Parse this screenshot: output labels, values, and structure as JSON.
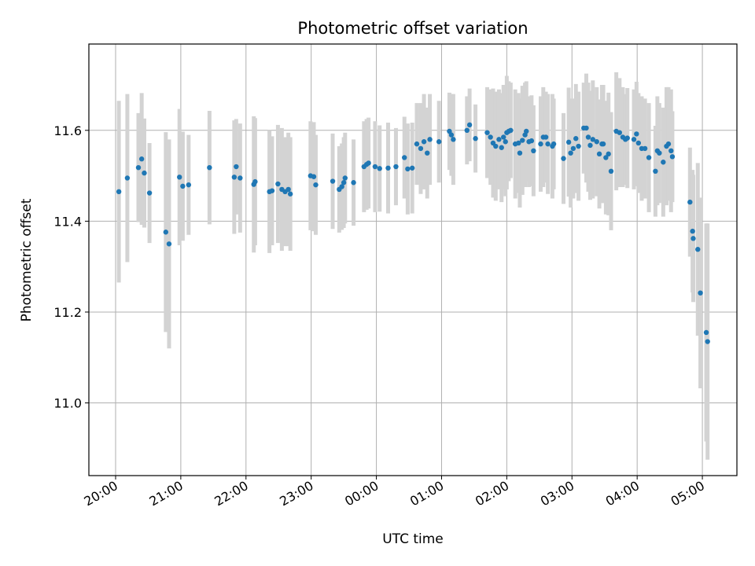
{
  "chart_data": {
    "type": "scatter",
    "title": "Photometric offset variation",
    "xlabel": "UTC time",
    "ylabel": "Photometric offset",
    "x_unit": "hours since 20:00 UTC",
    "xlim": [
      -0.41,
      9.53
    ],
    "ylim": [
      10.84,
      11.79
    ],
    "grid": true,
    "x_ticks": [
      {
        "value": 0,
        "label": "20:00"
      },
      {
        "value": 1,
        "label": "21:00"
      },
      {
        "value": 2,
        "label": "22:00"
      },
      {
        "value": 3,
        "label": "23:00"
      },
      {
        "value": 4,
        "label": "00:00"
      },
      {
        "value": 5,
        "label": "01:00"
      },
      {
        "value": 6,
        "label": "02:00"
      },
      {
        "value": 7,
        "label": "03:00"
      },
      {
        "value": 8,
        "label": "04:00"
      },
      {
        "value": 9,
        "label": "05:00"
      }
    ],
    "y_ticks": [
      {
        "value": 11.0,
        "label": "11.0"
      },
      {
        "value": 11.2,
        "label": "11.2"
      },
      {
        "value": 11.4,
        "label": "11.4"
      },
      {
        "value": 11.6,
        "label": "11.6"
      }
    ],
    "colors": {
      "points": "#1f77b4",
      "errorbars": "#d3d3d3",
      "grid": "#b0b0b0"
    },
    "series": [
      {
        "name": "offset",
        "points": [
          [
            0.05,
            11.465,
            0.2
          ],
          [
            0.18,
            11.495,
            0.185
          ],
          [
            0.35,
            11.518,
            0.12
          ],
          [
            0.4,
            11.537,
            0.145
          ],
          [
            0.44,
            11.506,
            0.12
          ],
          [
            0.52,
            11.462,
            0.11
          ],
          [
            0.77,
            11.376,
            0.22
          ],
          [
            0.82,
            11.35,
            0.23
          ],
          [
            0.98,
            11.497,
            0.15
          ],
          [
            1.03,
            11.477,
            0.12
          ],
          [
            1.12,
            11.48,
            0.11
          ],
          [
            1.44,
            11.518,
            0.125
          ],
          [
            1.82,
            11.497,
            0.125
          ],
          [
            1.85,
            11.52,
            0.105
          ],
          [
            1.91,
            11.495,
            0.12
          ],
          [
            2.12,
            11.481,
            0.15
          ],
          [
            2.14,
            11.487,
            0.14
          ],
          [
            2.36,
            11.465,
            0.135
          ],
          [
            2.4,
            11.467,
            0.12
          ],
          [
            2.49,
            11.482,
            0.13
          ],
          [
            2.55,
            11.47,
            0.135
          ],
          [
            2.6,
            11.465,
            0.12
          ],
          [
            2.65,
            11.47,
            0.125
          ],
          [
            2.68,
            11.46,
            0.125
          ],
          [
            2.99,
            11.5,
            0.12
          ],
          [
            3.04,
            11.498,
            0.12
          ],
          [
            3.07,
            11.48,
            0.11
          ],
          [
            3.33,
            11.488,
            0.105
          ],
          [
            3.43,
            11.47,
            0.095
          ],
          [
            3.47,
            11.476,
            0.095
          ],
          [
            3.5,
            11.485,
            0.1
          ],
          [
            3.52,
            11.495,
            0.1
          ],
          [
            3.65,
            11.485,
            0.095
          ],
          [
            3.81,
            11.52,
            0.1
          ],
          [
            3.85,
            11.525,
            0.1
          ],
          [
            3.88,
            11.528,
            0.1
          ],
          [
            3.98,
            11.52,
            0.1
          ],
          [
            4.05,
            11.516,
            0.095
          ],
          [
            4.18,
            11.517,
            0.1
          ],
          [
            4.3,
            11.52,
            0.085
          ],
          [
            4.43,
            11.54,
            0.09
          ],
          [
            4.48,
            11.515,
            0.1
          ],
          [
            4.55,
            11.517,
            0.1
          ],
          [
            4.62,
            11.57,
            0.09
          ],
          [
            4.68,
            11.56,
            0.1
          ],
          [
            4.73,
            11.575,
            0.105
          ],
          [
            4.78,
            11.55,
            0.1
          ],
          [
            4.82,
            11.58,
            0.1
          ],
          [
            4.96,
            11.575,
            0.09
          ],
          [
            5.12,
            11.598,
            0.085
          ],
          [
            5.15,
            11.59,
            0.09
          ],
          [
            5.18,
            11.58,
            0.1
          ],
          [
            5.39,
            11.6,
            0.075
          ],
          [
            5.43,
            11.612,
            0.08
          ],
          [
            5.52,
            11.582,
            0.075
          ],
          [
            5.7,
            11.595,
            0.1
          ],
          [
            5.75,
            11.585,
            0.105
          ],
          [
            5.79,
            11.572,
            0.12
          ],
          [
            5.83,
            11.565,
            0.12
          ],
          [
            5.88,
            11.58,
            0.11
          ],
          [
            5.92,
            11.562,
            0.12
          ],
          [
            5.95,
            11.585,
            0.115
          ],
          [
            5.98,
            11.575,
            0.12
          ],
          [
            6.0,
            11.595,
            0.125
          ],
          [
            6.03,
            11.598,
            0.11
          ],
          [
            6.06,
            11.6,
            0.105
          ],
          [
            6.13,
            11.57,
            0.12
          ],
          [
            6.18,
            11.572,
            0.11
          ],
          [
            6.2,
            11.55,
            0.12
          ],
          [
            6.24,
            11.578,
            0.12
          ],
          [
            6.28,
            11.59,
            0.115
          ],
          [
            6.3,
            11.598,
            0.11
          ],
          [
            6.34,
            11.575,
            0.1
          ],
          [
            6.38,
            11.577,
            0.1
          ],
          [
            6.41,
            11.555,
            0.1
          ],
          [
            6.52,
            11.57,
            0.105
          ],
          [
            6.56,
            11.585,
            0.11
          ],
          [
            6.6,
            11.585,
            0.1
          ],
          [
            6.63,
            11.57,
            0.11
          ],
          [
            6.7,
            11.565,
            0.115
          ],
          [
            6.72,
            11.57,
            0.1
          ],
          [
            6.87,
            11.538,
            0.1
          ],
          [
            6.95,
            11.574,
            0.12
          ],
          [
            6.98,
            11.55,
            0.12
          ],
          [
            7.02,
            11.56,
            0.11
          ],
          [
            7.06,
            11.582,
            0.12
          ],
          [
            7.1,
            11.565,
            0.12
          ],
          [
            7.18,
            11.605,
            0.1
          ],
          [
            7.22,
            11.605,
            0.12
          ],
          [
            7.25,
            11.585,
            0.12
          ],
          [
            7.28,
            11.567,
            0.12
          ],
          [
            7.32,
            11.58,
            0.13
          ],
          [
            7.38,
            11.575,
            0.12
          ],
          [
            7.42,
            11.548,
            0.12
          ],
          [
            7.46,
            11.57,
            0.13
          ],
          [
            7.48,
            11.57,
            0.13
          ],
          [
            7.52,
            11.54,
            0.125
          ],
          [
            7.56,
            11.548,
            0.135
          ],
          [
            7.6,
            11.51,
            0.13
          ],
          [
            7.68,
            11.598,
            0.13
          ],
          [
            7.73,
            11.595,
            0.12
          ],
          [
            7.78,
            11.585,
            0.11
          ],
          [
            7.82,
            11.58,
            0.1
          ],
          [
            7.85,
            11.583,
            0.11
          ],
          [
            7.95,
            11.58,
            0.11
          ],
          [
            7.99,
            11.592,
            0.115
          ],
          [
            8.02,
            11.572,
            0.11
          ],
          [
            8.07,
            11.56,
            0.115
          ],
          [
            8.12,
            11.56,
            0.11
          ],
          [
            8.18,
            11.54,
            0.12
          ],
          [
            8.28,
            11.51,
            0.1
          ],
          [
            8.31,
            11.555,
            0.12
          ],
          [
            8.34,
            11.55,
            0.11
          ],
          [
            8.4,
            11.53,
            0.12
          ],
          [
            8.45,
            11.565,
            0.13
          ],
          [
            8.48,
            11.57,
            0.125
          ],
          [
            8.52,
            11.555,
            0.135
          ],
          [
            8.54,
            11.542,
            0.1
          ],
          [
            8.81,
            11.442,
            0.12
          ],
          [
            8.85,
            11.378,
            0.135
          ],
          [
            8.86,
            11.362,
            0.14
          ],
          [
            8.93,
            11.338,
            0.19
          ],
          [
            8.97,
            11.242,
            0.21
          ],
          [
            9.06,
            11.155,
            0.24
          ],
          [
            9.08,
            11.135,
            0.26
          ]
        ]
      }
    ]
  }
}
